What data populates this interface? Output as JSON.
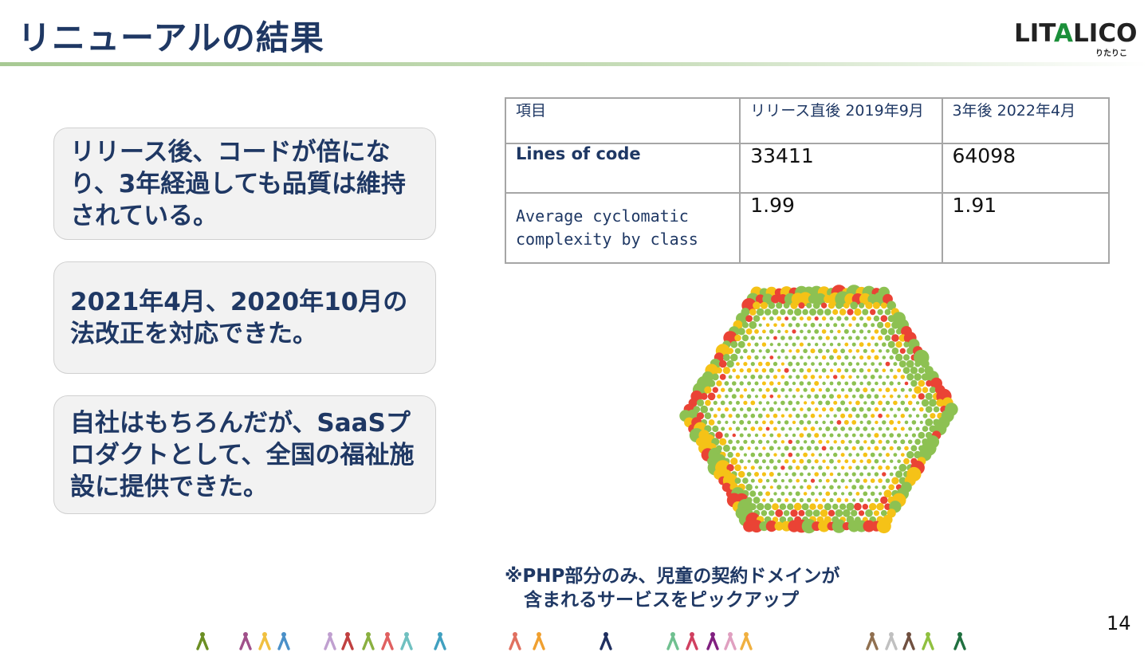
{
  "slide": {
    "title": "リニューアルの結果",
    "page_number": "14"
  },
  "logo": {
    "main_text": "LITALICO",
    "sub_text": "りたりこ",
    "accent_color": "#1b8f3a"
  },
  "points": [
    "リリース後、コードが倍になり、3年経過しても品質は維持されている。",
    "2021年4月、2020年10月の法改正を対応できた。",
    "自社はもちろんだが、SaaSプロダクトとして、全国の福祉施設に提供できた。"
  ],
  "metrics_table": {
    "headers": [
      "項目",
      "リリース直後 2019年9月",
      "3年後 2022年4月"
    ],
    "rows": [
      {
        "label": "Lines of code",
        "v2019": "33411",
        "v2022": "64098"
      },
      {
        "label": "Average cyclomatic complexity by class",
        "v2019": "1.99",
        "v2022": "1.91"
      }
    ]
  },
  "bubble_colors": {
    "green": "#8dc152",
    "yellow": "#f5c217",
    "red": "#ea4335"
  },
  "footnote": {
    "line1": "※PHP部分のみ、児童の契約ドメインが",
    "line2": "含まれるサービスをピックアップ"
  },
  "people_colors": [
    "#6b8e23",
    "#a0508a",
    "#f0c040",
    "#4a90c8",
    "#c0a0d0",
    "#c04040",
    "#8ab040",
    "#e06060",
    "#70c0c0",
    "#40a0c0",
    "#e07060",
    "#f0a030",
    "#203060",
    "#70c090",
    "#d04060",
    "#802080",
    "#e0a0c0",
    "#f0b040",
    "#907050",
    "#c0c0c0",
    "#705040",
    "#90c040",
    "#207040"
  ]
}
